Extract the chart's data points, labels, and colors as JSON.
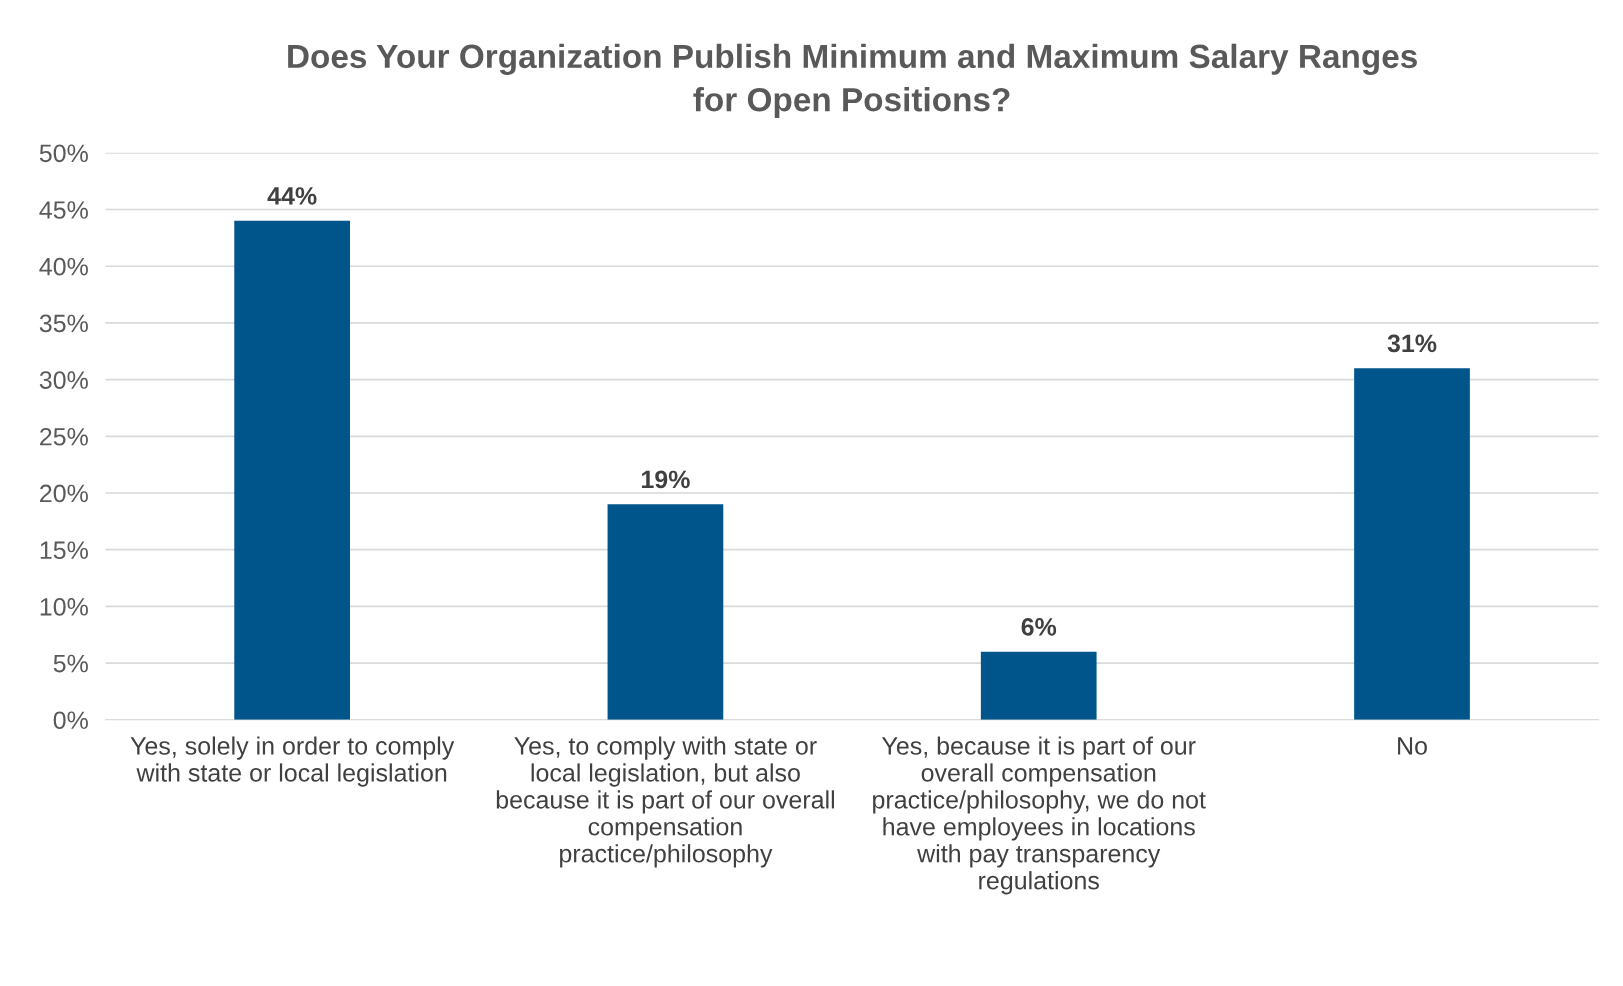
{
  "chart_data": {
    "type": "bar",
    "title": "Does Your Organization Publish Minimum and Maximum Salary Ranges\nfor Open Positions?",
    "categories": [
      "Yes, solely in order to comply\nwith state or local legislation",
      "Yes, to comply with state or\nlocal legislation, but also\nbecause it is part of our overall\ncompensation\npractice/philosophy",
      "Yes, because it is part of our\noverall compensation\npractice/philosophy, we do not\nhave employees in locations\nwith pay transparency\nregulations",
      "No"
    ],
    "values": [
      44,
      19,
      6,
      31
    ],
    "value_labels": [
      "44%",
      "19%",
      "6%",
      "31%"
    ],
    "color": "#00558b",
    "ylim": [
      0,
      50
    ],
    "yticks": [
      {
        "value": 0,
        "label": "0%"
      },
      {
        "value": 5,
        "label": "5%"
      },
      {
        "value": 10,
        "label": "10%"
      },
      {
        "value": 15,
        "label": "15%"
      },
      {
        "value": 20,
        "label": "20%"
      },
      {
        "value": 25,
        "label": "25%"
      },
      {
        "value": 30,
        "label": "30%"
      },
      {
        "value": 35,
        "label": "35%"
      },
      {
        "value": 40,
        "label": "40%"
      },
      {
        "value": 45,
        "label": "45%"
      },
      {
        "value": 50,
        "label": "50%"
      }
    ],
    "grid": "y"
  }
}
